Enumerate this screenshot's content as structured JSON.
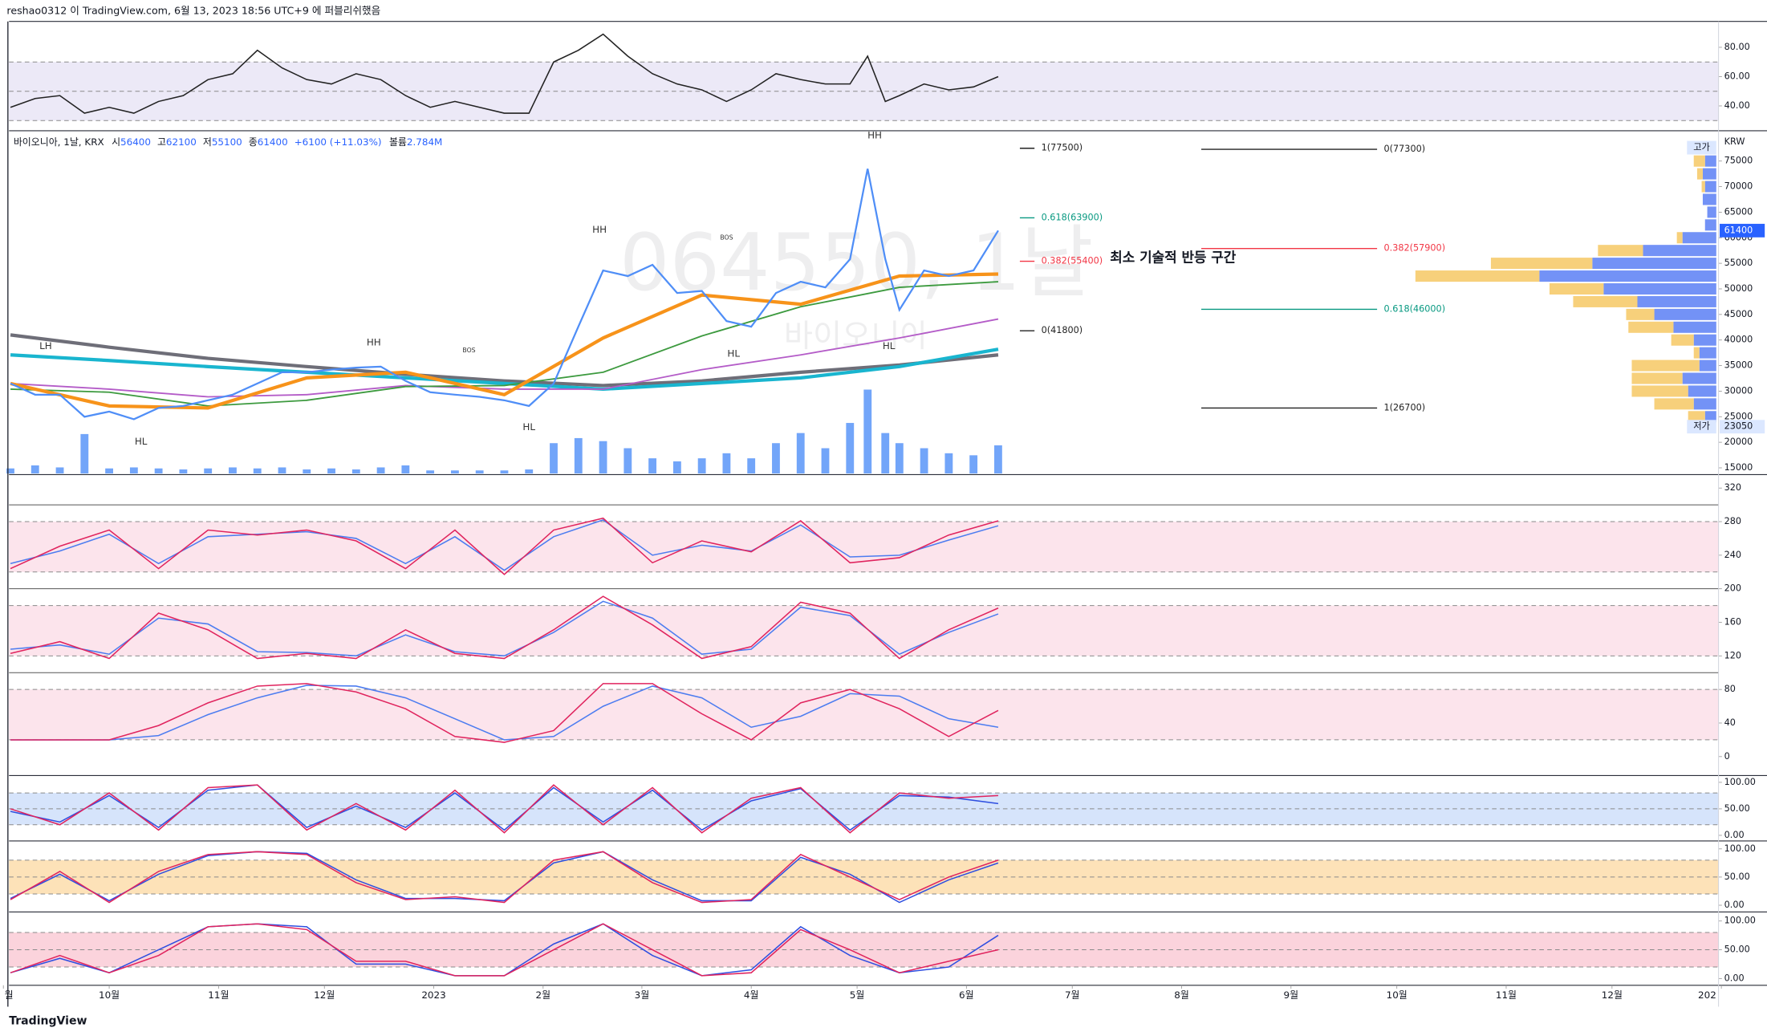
{
  "header": {
    "text": "reshao0312 이 TradingView.com, 6월 13, 2023 18:56 UTC+9 에 퍼블리쉬했음"
  },
  "footer": {
    "logo": "TradingView"
  },
  "x_axis": {
    "xlim": [
      1.6,
      486.2
    ],
    "xticks": [
      {
        "value": 0,
        "label": "월"
      },
      {
        "value": 30,
        "label": "10월"
      },
      {
        "value": 61,
        "label": "11월"
      },
      {
        "value": 91,
        "label": "12월"
      },
      {
        "value": 122,
        "label": "2023"
      },
      {
        "value": 153,
        "label": "2월"
      },
      {
        "value": 181,
        "label": "3월"
      },
      {
        "value": 212,
        "label": "4월"
      },
      {
        "value": 242,
        "label": "5월"
      },
      {
        "value": 273,
        "label": "6월"
      },
      {
        "value": 303,
        "label": "7월"
      },
      {
        "value": 334,
        "label": "8월"
      },
      {
        "value": 365,
        "label": "9월"
      },
      {
        "value": 395,
        "label": "10월"
      },
      {
        "value": 426,
        "label": "11월"
      },
      {
        "value": 456,
        "label": "12월"
      },
      {
        "value": 487,
        "label": "202"
      }
    ]
  },
  "chart_data": [
    {
      "type": "osc",
      "x": [
        2,
        9,
        16,
        23,
        30,
        37,
        44,
        51,
        58,
        65,
        72,
        79,
        86,
        93,
        100,
        107,
        114,
        121,
        128,
        135,
        142,
        149,
        156,
        163,
        170,
        177,
        184,
        191,
        198,
        205,
        212,
        219,
        226,
        233,
        240,
        245,
        250,
        254,
        261,
        268,
        275,
        282
      ],
      "series": [
        {
          "color": "#222222",
          "values": [
            39,
            45,
            47,
            35,
            39,
            35,
            43,
            47,
            58,
            62,
            78,
            66,
            58,
            55,
            62,
            58,
            47,
            39,
            43,
            39,
            35,
            35,
            70,
            78,
            89,
            74,
            62,
            55,
            51,
            43,
            51,
            62,
            58,
            55,
            55,
            74,
            43,
            47,
            55,
            51,
            53,
            60
          ]
        }
      ],
      "ylim": [
        23.8,
        96.9
      ],
      "yticks": [
        {
          "value": 80,
          "label": "80.00"
        },
        {
          "value": 60,
          "label": "60.00"
        },
        {
          "value": 40,
          "label": "40.00"
        }
      ],
      "bands": [
        [
          30,
          70
        ]
      ],
      "band_color": "#ece9f7",
      "levels": [
        50
      ],
      "dividers": []
    },
    {
      "type": "price",
      "symbol": "바이오니아, 1날, KRX",
      "ohlc": [
        {
          "label": "시",
          "value": 56400
        },
        {
          "label": "고",
          "value": 62100
        },
        {
          "label": "저",
          "value": 55100
        },
        {
          "label": "종",
          "value": 61400
        }
      ],
      "change": "+6100 (+11.03%)",
      "volume_label": "볼륨",
      "volume_text": "2.784M",
      "watermark": "064550, 1날",
      "watermark_sub": "바이오니아",
      "note": "최소 기술적 반등 구간",
      "currency": "KRW",
      "high_label": "고가",
      "low_label": "저가",
      "low_value": 23050,
      "last_price": 61400,
      "ylim": [
        13900,
        80700
      ],
      "yticks": [
        75000,
        70000,
        65000,
        60000,
        55000,
        50000,
        45000,
        40000,
        35000,
        30000,
        25000,
        20000,
        15000
      ],
      "x": [
        2,
        9,
        16,
        23,
        30,
        37,
        44,
        51,
        58,
        65,
        72,
        79,
        86,
        93,
        100,
        107,
        114,
        121,
        128,
        135,
        142,
        149,
        156,
        163,
        170,
        177,
        184,
        191,
        198,
        205,
        212,
        219,
        226,
        233,
        240,
        245,
        250,
        254,
        261,
        268,
        275,
        282
      ],
      "price": {
        "color": "#4f8ef7",
        "values": [
          31500,
          29300,
          29300,
          25000,
          26000,
          24500,
          26700,
          27100,
          28200,
          29300,
          31500,
          33700,
          33700,
          34200,
          34600,
          34800,
          32000,
          29800,
          29300,
          28900,
          28200,
          27100,
          31500,
          42600,
          53600,
          52500,
          54700,
          49200,
          49600,
          43700,
          42600,
          49200,
          51400,
          50300,
          55800,
          73500,
          55800,
          45900,
          53600,
          52500,
          53600,
          61400
        ]
      },
      "volume": {
        "color": "#4f8ef7",
        "ylim": [
          0,
          33.8
        ],
        "values": [
          0.5,
          0.8,
          0.6,
          3.9,
          0.5,
          0.6,
          0.5,
          0.4,
          0.5,
          0.6,
          0.5,
          0.6,
          0.4,
          0.5,
          0.4,
          0.6,
          0.8,
          0.3,
          0.3,
          0.3,
          0.3,
          0.4,
          3.0,
          3.5,
          3.2,
          2.5,
          1.5,
          1.2,
          1.5,
          2.0,
          1.5,
          3.0,
          4.0,
          2.5,
          5.0,
          8.3,
          4.0,
          3.0,
          2.5,
          2.0,
          1.8,
          2.784
        ]
      },
      "ma_x": [
        2,
        30,
        58,
        86,
        114,
        142,
        170,
        198,
        226,
        254,
        282
      ],
      "mas": [
        {
          "color": "#6e6e78",
          "width": 3,
          "values": [
            41000,
            38600,
            36400,
            34800,
            33300,
            32000,
            31100,
            32000,
            33700,
            35100,
            37100
          ]
        },
        {
          "color": "#19b5cf",
          "width": 3,
          "values": [
            37100,
            36000,
            34800,
            33700,
            32600,
            31500,
            30400,
            31500,
            32600,
            34800,
            38200
          ]
        },
        {
          "color": "#b45cc8",
          "width": 1.3,
          "values": [
            31500,
            30400,
            28900,
            29300,
            31100,
            30400,
            30400,
            34200,
            37100,
            40400,
            44100
          ]
        },
        {
          "color": "#3d9a3f",
          "width": 1.3,
          "values": [
            30400,
            29800,
            27100,
            28200,
            30900,
            31100,
            33700,
            40800,
            46500,
            50300,
            51400
          ]
        },
        {
          "color": "#f7931a",
          "width": 3,
          "values": [
            31500,
            27100,
            26700,
            32600,
            33700,
            29300,
            40400,
            48800,
            47000,
            52500,
            52900
          ]
        }
      ],
      "fib_left": [
        {
          "label": "1(77500)",
          "value": 77500,
          "color": "#222222"
        },
        {
          "label": "0.618(63900)",
          "value": 63900,
          "color": "#089981"
        },
        {
          "label": "0.382(55400)",
          "value": 55400,
          "color": "#f23645"
        },
        {
          "label": "0(41800)",
          "value": 41800,
          "color": "#222222"
        }
      ],
      "fib_right": [
        {
          "label": "0(77300)",
          "value": 77300,
          "color": "#222222"
        },
        {
          "label": "0.382(57900)",
          "value": 57900,
          "color": "#f23645"
        },
        {
          "label": "0.618(46000)",
          "value": 46000,
          "color": "#089981"
        },
        {
          "label": "1(26700)",
          "value": 26700,
          "color": "#222222"
        }
      ],
      "annotations": [
        {
          "text": "LH",
          "x": 12,
          "y": 38800
        },
        {
          "text": "HL",
          "x": 39,
          "y": 20100
        },
        {
          "text": "HH",
          "x": 105,
          "y": 39500
        },
        {
          "text": "BOS",
          "x": 132,
          "y": 37900
        },
        {
          "text": "HL",
          "x": 149,
          "y": 22900
        },
        {
          "text": "HH",
          "x": 169,
          "y": 61500
        },
        {
          "text": "BOS",
          "x": 205,
          "y": 60000
        },
        {
          "text": "HL",
          "x": 207,
          "y": 37300
        },
        {
          "text": "HH",
          "x": 247,
          "y": 80000
        },
        {
          "text": "HL",
          "x": 251,
          "y": 38800
        }
      ],
      "volume_profile": {
        "up_color": "#5b7ff5",
        "down_color": "#f6c864",
        "prices": [
          75000,
          72500,
          70000,
          67500,
          65000,
          62500,
          60000,
          57500,
          55000,
          52500,
          50000,
          47500,
          45000,
          42500,
          40000,
          37500,
          35000,
          32500,
          30000,
          27500,
          25000
        ],
        "up": [
          10,
          12,
          10,
          12,
          8,
          10,
          30,
          65,
          110,
          157,
          100,
          70,
          55,
          38,
          20,
          15,
          15,
          30,
          25,
          20,
          10
        ],
        "down": [
          10,
          5,
          3,
          0,
          0,
          0,
          5,
          40,
          90,
          110,
          48,
          57,
          25,
          40,
          20,
          5,
          60,
          45,
          50,
          35,
          15
        ]
      }
    },
    {
      "type": "osc",
      "x": [
        2,
        16,
        30,
        44,
        58,
        72,
        86,
        100,
        114,
        128,
        142,
        156,
        170,
        184,
        198,
        212,
        226,
        240,
        254,
        268,
        282
      ],
      "series": [
        {
          "color": "#4c7cf0",
          "values": [
            230,
            245,
            265,
            230,
            262,
            265,
            268,
            260,
            230,
            262,
            222,
            262,
            282,
            240,
            252,
            245,
            276,
            238,
            240,
            258,
            275
          ]
        },
        {
          "color": "#e0245e",
          "values": [
            224,
            250.7,
            270,
            224,
            270,
            264,
            270,
            257,
            224,
            270,
            217,
            270,
            284,
            231,
            257,
            244,
            281,
            231,
            237,
            264,
            281
          ]
        },
        {
          "color": "#4c7cf0",
          "values": [
            128,
            133,
            122,
            165,
            158,
            125,
            124,
            120,
            145,
            125,
            120,
            148,
            185,
            165,
            122,
            128,
            178,
            168,
            122,
            148,
            170
          ]
        },
        {
          "color": "#e0245e",
          "values": [
            123,
            137,
            117,
            171,
            151,
            117,
            123,
            117,
            151,
            123,
            117,
            151,
            191,
            157,
            117,
            131,
            184,
            171,
            117,
            151,
            177
          ]
        },
        {
          "color": "#4c7cf0",
          "values": [
            20,
            20,
            20,
            25,
            50,
            70,
            85,
            84,
            70,
            45,
            20,
            24,
            60,
            84,
            70,
            35,
            48,
            75,
            72,
            45,
            35
          ]
        },
        {
          "color": "#e0245e",
          "values": [
            20,
            20,
            20,
            37,
            64,
            84,
            87,
            77,
            57,
            24,
            17,
            31,
            87,
            87,
            51,
            20,
            64,
            80,
            57,
            24,
            55
          ]
        }
      ],
      "ylim": [
        -21.3,
        334.7
      ],
      "yticks": [
        320,
        280,
        240,
        200,
        160,
        120,
        80,
        40,
        0
      ],
      "bands": [
        [
          220,
          280
        ],
        [
          120,
          180
        ],
        [
          20,
          80
        ]
      ],
      "band_color": "#fce4ec",
      "levels": [],
      "dividers": [
        300,
        200,
        100
      ]
    },
    {
      "type": "osc",
      "x": [
        2,
        16,
        30,
        44,
        58,
        72,
        86,
        100,
        114,
        128,
        142,
        156,
        170,
        184,
        198,
        212,
        226,
        240,
        254,
        268,
        282
      ],
      "series": [
        {
          "color": "#2f4fe0",
          "values": [
            45,
            25,
            75,
            15,
            85,
            95,
            15,
            55,
            15,
            80,
            10,
            90,
            25,
            85,
            10,
            65,
            88,
            10,
            75,
            72,
            60
          ]
        },
        {
          "color": "#e0245e",
          "values": [
            50,
            20,
            80,
            10,
            90,
            95,
            10,
            60,
            10,
            85,
            5,
            95,
            20,
            90,
            5,
            70,
            90,
            5,
            80,
            70,
            75
          ]
        }
      ],
      "ylim": [
        -8.5,
        110.6
      ],
      "yticks": [
        {
          "value": 100,
          "label": "100.00"
        },
        {
          "value": 50,
          "label": "50.00"
        },
        {
          "value": 0,
          "label": "0.00"
        }
      ],
      "bands": [
        [
          20,
          80
        ]
      ],
      "band_color": "#d6e4fb",
      "levels": [
        50
      ],
      "dividers": []
    },
    {
      "type": "osc",
      "x": [
        2,
        16,
        30,
        44,
        58,
        72,
        86,
        100,
        114,
        128,
        142,
        156,
        170,
        184,
        198,
        212,
        226,
        240,
        254,
        268,
        282
      ],
      "series": [
        {
          "color": "#2f4fe0",
          "values": [
            12,
            55,
            8,
            55,
            88,
            95,
            92,
            45,
            12,
            12,
            8,
            75,
            95,
            45,
            8,
            8,
            85,
            55,
            5,
            45,
            75
          ]
        },
        {
          "color": "#e0245e",
          "values": [
            10,
            60,
            5,
            60,
            90,
            95,
            90,
            40,
            10,
            15,
            5,
            80,
            95,
            40,
            5,
            10,
            90,
            50,
            10,
            50,
            80
          ]
        }
      ],
      "ylim": [
        -10,
        112
      ],
      "yticks": [
        {
          "value": 100,
          "label": "100.00"
        },
        {
          "value": 50,
          "label": "50.00"
        },
        {
          "value": 0,
          "label": "0.00"
        }
      ],
      "bands": [
        [
          20,
          80
        ]
      ],
      "band_color": "#fde2b8",
      "levels": [
        50
      ],
      "dividers": []
    },
    {
      "type": "osc",
      "x": [
        2,
        16,
        30,
        44,
        58,
        72,
        86,
        100,
        114,
        128,
        142,
        156,
        170,
        184,
        198,
        212,
        226,
        240,
        254,
        268,
        282
      ],
      "series": [
        {
          "color": "#2f4fe0",
          "values": [
            10,
            35,
            10,
            50,
            90,
            95,
            90,
            25,
            25,
            5,
            5,
            60,
            95,
            40,
            5,
            15,
            90,
            40,
            10,
            20,
            75
          ]
        },
        {
          "color": "#e0245e",
          "values": [
            10,
            40,
            10,
            40,
            90,
            95,
            85,
            30,
            30,
            5,
            5,
            50,
            95,
            50,
            5,
            10,
            85,
            50,
            10,
            30,
            50
          ]
        }
      ],
      "ylim": [
        -9.8,
        113.7
      ],
      "yticks": [
        {
          "value": 100,
          "label": "100.00"
        },
        {
          "value": 50,
          "label": "50.00"
        },
        {
          "value": 0,
          "label": "0.00"
        }
      ],
      "bands": [
        [
          20,
          80
        ]
      ],
      "band_color": "#fbd3dc",
      "levels": [
        50
      ],
      "dividers": []
    }
  ]
}
